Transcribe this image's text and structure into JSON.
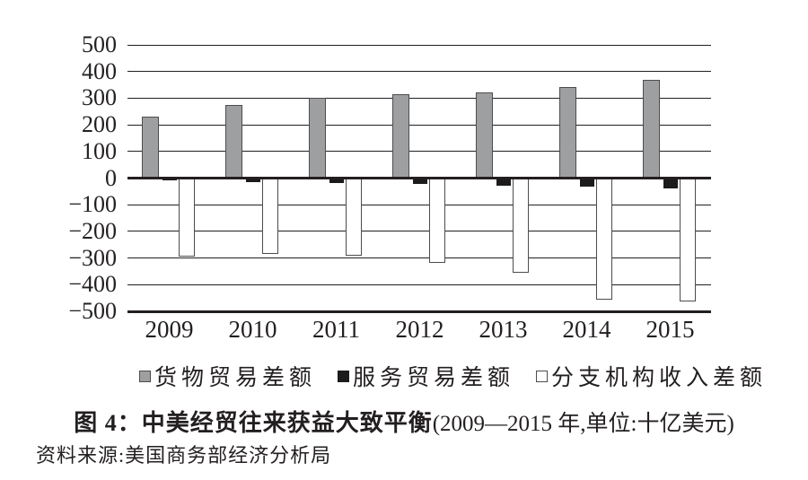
{
  "figure": {
    "title_bold": "图 4：中美经贸往来获益大致平衡",
    "title_note": "(2009—2015 年,单位:十亿美元)",
    "source": "资料来源:美国商务部经济分析局"
  },
  "chart_data": {
    "type": "bar",
    "title": "图 4：中美经贸往来获益大致平衡(2009—2015 年,单位:十亿美元)",
    "xlabel": "",
    "ylabel": "",
    "unit": "十亿美元",
    "categories": [
      "2009",
      "2010",
      "2011",
      "2012",
      "2013",
      "2014",
      "2015"
    ],
    "series": [
      {
        "key": "goods",
        "name": "货物贸易差额",
        "color": "#9e9fa1",
        "border": "#4c4d4f",
        "values": [
          230,
          275,
          300,
          315,
          322,
          343,
          370
        ]
      },
      {
        "key": "services",
        "name": "服务贸易差额",
        "color": "#1b1b1b",
        "border": "#1b1b1b",
        "values": [
          -8,
          -14,
          -20,
          -22,
          -28,
          -32,
          -38
        ]
      },
      {
        "key": "affiliate",
        "name": "分支机构收入差额",
        "color": "#ffffff",
        "border": "#4c4d4f",
        "values": [
          -295,
          -283,
          -290,
          -317,
          -355,
          -457,
          -462
        ]
      }
    ],
    "ylim": [
      -500,
      500
    ],
    "yticks": [
      {
        "v": 500,
        "label": "500"
      },
      {
        "v": 400,
        "label": "400"
      },
      {
        "v": 300,
        "label": "300"
      },
      {
        "v": 200,
        "label": "200"
      },
      {
        "v": 100,
        "label": "100"
      },
      {
        "v": 0,
        "label": "0"
      },
      {
        "v": -100,
        "label": "−100"
      },
      {
        "v": -200,
        "label": "−200"
      },
      {
        "v": -300,
        "label": "−300"
      },
      {
        "v": -400,
        "label": "−400"
      },
      {
        "v": -500,
        "label": "−500"
      }
    ],
    "grid": true,
    "legend_position": "bottom"
  }
}
